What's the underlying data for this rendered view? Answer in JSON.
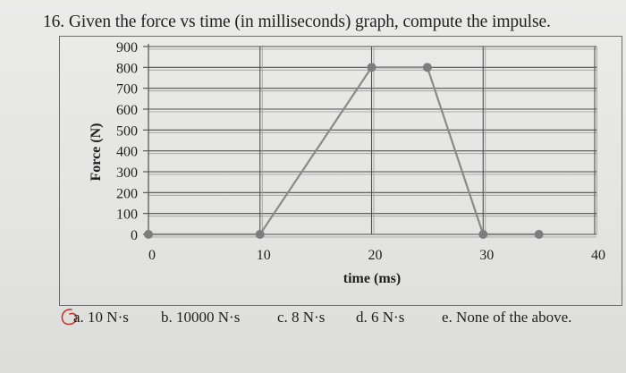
{
  "question": "16. Given the force vs time (in milliseconds) graph, compute the impulse.",
  "chart_data": {
    "type": "line",
    "xlabel": "time (ms)",
    "ylabel": "Force (N)",
    "xlim": [
      0,
      40
    ],
    "ylim": [
      0,
      900
    ],
    "xticks": [
      0,
      10,
      20,
      30,
      40
    ],
    "yticks": [
      0,
      100,
      200,
      300,
      400,
      500,
      600,
      700,
      800,
      900
    ],
    "grid": true,
    "series": [
      {
        "x": [
          0,
          10,
          20,
          25,
          30,
          35
        ],
        "y": [
          0,
          0,
          800,
          800,
          0,
          0
        ]
      }
    ]
  },
  "answers": [
    "a. 10 N·s",
    "b. 10000 N·s",
    "c. 8 N·s",
    "d. 6 N·s",
    "e. None of the above."
  ],
  "colors": {
    "line": "#8a8a8a",
    "marker": "#7d7d7d",
    "grid": "#4f4f4f",
    "pen_mark": "#c0392b"
  }
}
